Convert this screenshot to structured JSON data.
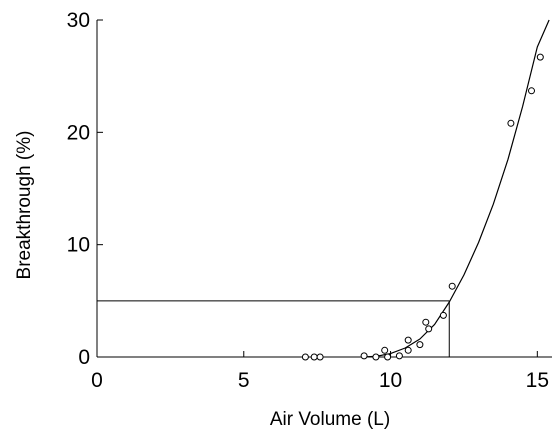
{
  "chart_data": {
    "type": "scatter",
    "title": "",
    "xlabel": "Air Volume (L)",
    "ylabel": "Breakthrough (%)",
    "xlim": [
      0,
      15.5
    ],
    "ylim": [
      0,
      30
    ],
    "x_ticks": [
      "0",
      "5",
      "10",
      "15"
    ],
    "y_ticks": [
      "0",
      "10",
      "20",
      "30"
    ],
    "grid": false,
    "legend": "none",
    "colors": {
      "axis": "#000000",
      "marker": "#000000",
      "curve": "#000000",
      "guide": "#000000"
    },
    "series": [
      {
        "mode": "markers",
        "x": [
          7.1,
          7.4,
          7.6,
          9.1,
          9.5,
          9.8,
          9.9,
          10.3,
          10.6,
          10.6,
          11.0,
          11.2,
          11.3,
          11.8,
          12.1,
          14.1,
          14.8,
          15.1
        ],
        "y": [
          0.0,
          0.0,
          0.0,
          0.1,
          0.0,
          0.6,
          0.0,
          0.1,
          0.6,
          1.5,
          1.1,
          3.1,
          2.5,
          3.7,
          6.3,
          20.8,
          23.7,
          26.7
        ]
      },
      {
        "mode": "curve",
        "x": [
          9.0,
          9.5,
          10.0,
          10.5,
          11.0,
          11.5,
          12.0,
          12.5,
          13.0,
          13.5,
          14.0,
          14.5,
          15.0,
          15.4
        ],
        "y": [
          0.0,
          0.05,
          0.3,
          0.8,
          1.6,
          2.9,
          4.9,
          7.3,
          10.2,
          13.6,
          17.6,
          22.3,
          27.6,
          30.0
        ]
      }
    ],
    "annotations": [
      {
        "type": "guide",
        "x": 12.0,
        "y": 5.0
      }
    ]
  }
}
